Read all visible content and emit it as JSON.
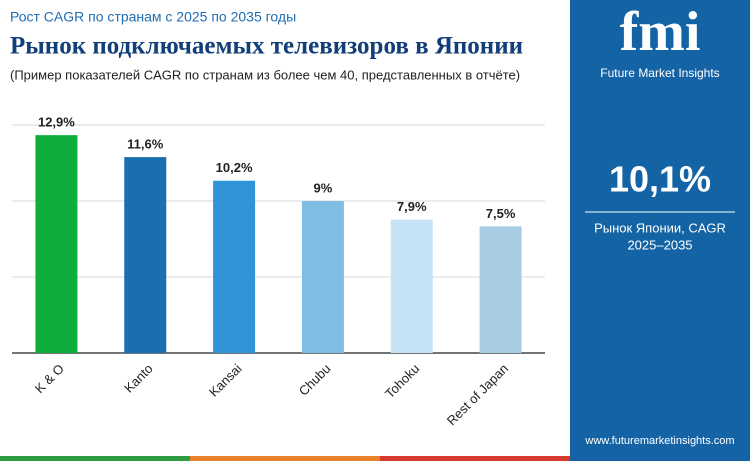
{
  "chart_data": {
    "type": "bar",
    "subtitle": "Рост CAGR по странам с 2025 по 2035 годы",
    "title": "Рынок подключаемых телевизоров в Японии",
    "note": "(Пример показателей CAGR по странам из более чем 40, представленных в отчёте)",
    "categories": [
      "K & O",
      "Kanto",
      "Kansai",
      "Chubu",
      "Tohoku",
      "Rest of Japan"
    ],
    "values": [
      12.9,
      11.6,
      10.2,
      9,
      7.9,
      7.5
    ],
    "value_labels": [
      "12,9%",
      "11,6%",
      "10,2%",
      "9%",
      "7,9%",
      "7,5%"
    ],
    "colors": [
      "#0fae3c",
      "#1b6fae",
      "#2f95d7",
      "#7fbde4",
      "#c6e3f5",
      "#a8cce4"
    ],
    "ylim": [
      0,
      13.5
    ],
    "yticks": [
      0,
      4.5,
      9,
      13.5
    ],
    "grid": true
  },
  "brand": {
    "logo": "fmi",
    "name": "Future Market Insights"
  },
  "highlight": {
    "value": "10,1%",
    "line1": "Рынок Японии, CAGR",
    "line2": "2025–2035"
  },
  "footer": {
    "url": "www.futuremarketinsights.com"
  }
}
